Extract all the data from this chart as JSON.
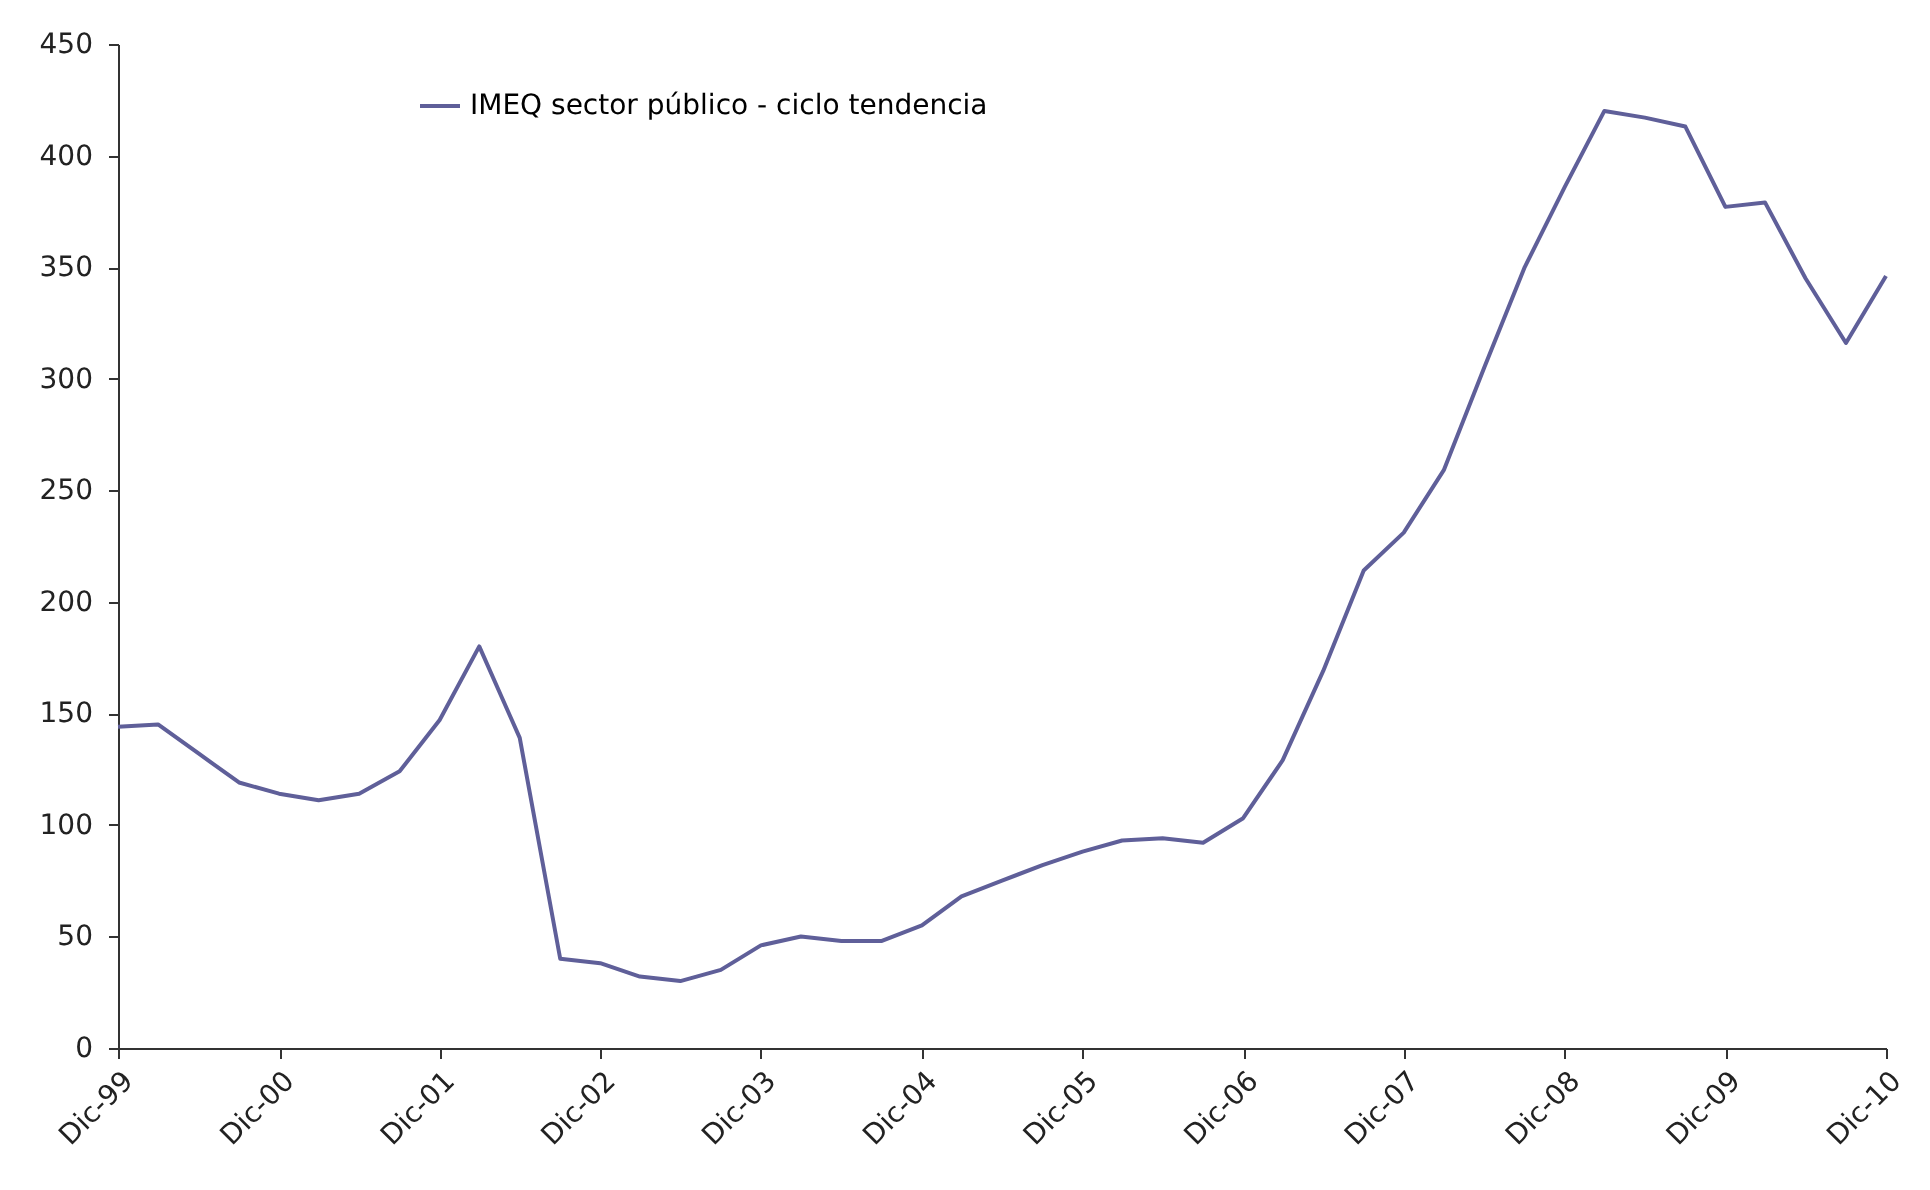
{
  "chart_data": {
    "type": "line",
    "x": [
      "1999-12",
      "2000-03",
      "2000-06",
      "2000-09",
      "2000-12",
      "2001-03",
      "2001-06",
      "2001-09",
      "2001-12",
      "2002-03",
      "2002-06",
      "2002-09",
      "2002-12",
      "2003-03",
      "2003-06",
      "2003-09",
      "2003-12",
      "2004-03",
      "2004-06",
      "2004-09",
      "2004-12",
      "2005-03",
      "2005-06",
      "2005-09",
      "2005-12",
      "2006-03",
      "2006-06",
      "2006-09",
      "2006-12",
      "2007-03",
      "2007-06",
      "2007-09",
      "2007-12",
      "2008-03",
      "2008-06",
      "2008-09",
      "2008-12",
      "2009-03",
      "2009-06",
      "2009-09",
      "2009-12",
      "2010-03",
      "2010-06",
      "2010-09",
      "2010-12"
    ],
    "series": [
      {
        "name": "IMEQ sector público - ciclo tendencia",
        "color": "#5f5f99",
        "values": [
          144,
          145,
          132,
          119,
          114,
          111,
          114,
          124,
          147,
          180,
          139,
          40,
          38,
          32,
          30,
          35,
          46,
          50,
          48,
          48,
          55,
          68,
          75,
          82,
          88,
          93,
          94,
          92,
          103,
          129,
          169,
          214,
          231,
          259,
          305,
          350,
          386,
          420,
          417,
          413,
          377,
          379,
          345,
          316,
          346
        ]
      }
    ],
    "xlim": [
      "1999-12",
      "2010-12"
    ],
    "xticks": [
      {
        "value": "1999-12",
        "label": "Dic-99"
      },
      {
        "value": "2000-12",
        "label": "Dic-00"
      },
      {
        "value": "2001-12",
        "label": "Dic-01"
      },
      {
        "value": "2002-12",
        "label": "Dic-02"
      },
      {
        "value": "2003-12",
        "label": "Dic-03"
      },
      {
        "value": "2004-12",
        "label": "Dic-04"
      },
      {
        "value": "2005-12",
        "label": "Dic-05"
      },
      {
        "value": "2006-12",
        "label": "Dic-06"
      },
      {
        "value": "2007-12",
        "label": "Dic-07"
      },
      {
        "value": "2008-12",
        "label": "Dic-08"
      },
      {
        "value": "2009-12",
        "label": "Dic-09"
      },
      {
        "value": "2010-12",
        "label": "Dic-10"
      }
    ],
    "ylim": [
      0,
      450
    ],
    "yticks": [
      0,
      50,
      100,
      150,
      200,
      250,
      300,
      350,
      400,
      450
    ],
    "grid": false,
    "legend": "top left",
    "marker": "none",
    "line_style": "solid"
  }
}
